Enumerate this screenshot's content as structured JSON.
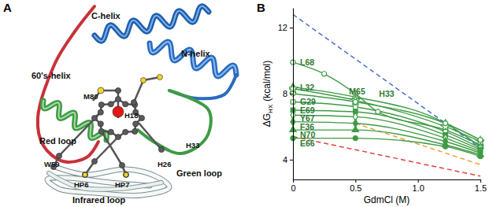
{
  "diagram": {
    "panel_label": "A",
    "labels": [
      "C-helix",
      "N-helix",
      "60's-helix",
      "M80",
      "H18",
      "Red loop",
      "W59",
      "HP6",
      "HP7",
      "H33",
      "H26",
      "Green loop",
      "Infrared loop"
    ]
  },
  "chart_data": {
    "type": "line",
    "panel_label": "B",
    "xlabel": "GdmCl (M)",
    "ylabel": [
      "ΔG",
      "HX",
      "(kcal/mol)"
    ],
    "xlim": [
      0,
      1.5
    ],
    "xticks": [
      0,
      0.5,
      {
        "value": 1,
        "label": "1.0"
      },
      1.5
    ],
    "ylim": [
      2.8,
      13.2
    ],
    "yticks": [
      4,
      8,
      12
    ],
    "series": [
      {
        "name": "L68",
        "color": "#3f9b45",
        "marker": "circle",
        "x": [
          0,
          0.25,
          0.5,
          0.68,
          1.22,
          1.5
        ],
        "values": [
          9.9,
          9.2,
          8.0,
          6.9,
          5.8,
          4.9
        ]
      },
      {
        "name": "L32",
        "color": "#3f9b45",
        "marker": "triangle",
        "x": [
          0,
          0.5,
          1.22,
          1.5
        ],
        "values": [
          8.4,
          7.8,
          6.2,
          4.8
        ]
      },
      {
        "name": "G29",
        "color": "#3f9b45",
        "marker": "square",
        "x": [
          0,
          0.5,
          1.22,
          1.5
        ],
        "values": [
          7.5,
          7.2,
          5.7,
          4.7
        ]
      },
      {
        "name": "M65",
        "color": "#3f9b45",
        "marker": "star",
        "x": [
          0,
          0.5,
          1.22,
          1.5
        ],
        "values": [
          8.3,
          7.6,
          6.0,
          5.1
        ]
      },
      {
        "name": "H33",
        "color": "#3f9b45",
        "marker": "circle",
        "x": [
          0,
          0.5,
          1.22,
          1.5
        ],
        "values": [
          8.0,
          7.5,
          6.2,
          5.2
        ]
      },
      {
        "name": "E69",
        "color": "#3f9b45",
        "marker": "filled-square",
        "x": [
          0,
          0.5,
          1.22,
          1.5
        ],
        "values": [
          7.0,
          6.9,
          5.5,
          4.6
        ]
      },
      {
        "name": "Y67",
        "color": "#3f9b45",
        "marker": "diamond",
        "x": [
          0,
          0.5,
          1.22,
          1.5
        ],
        "values": [
          6.7,
          6.6,
          5.3,
          4.5
        ]
      },
      {
        "name": "F36",
        "color": "#3f9b45",
        "marker": "filled-diamond",
        "x": [
          0,
          0.5,
          1.22,
          1.5
        ],
        "values": [
          6.3,
          6.2,
          5.1,
          4.4
        ]
      },
      {
        "name": "N70",
        "color": "#3f9b45",
        "marker": "filled-triangle",
        "x": [
          0,
          0.5,
          1.22,
          1.5
        ],
        "values": [
          5.8,
          5.8,
          4.9,
          4.3
        ]
      },
      {
        "name": "E66",
        "color": "#3f9b45",
        "marker": "filled-circle",
        "x": [
          0,
          0.5,
          1.22,
          1.5
        ],
        "values": [
          5.3,
          5.3,
          4.8,
          4.2
        ]
      }
    ],
    "reference_lines": [
      {
        "color": "#4a6fd0",
        "line_style": "dashed",
        "x": [
          0,
          1.5
        ],
        "values": [
          12.8,
          4.7
        ]
      },
      {
        "color": "#f0a030",
        "line_style": "dashed",
        "x": [
          0.5,
          1.5
        ],
        "values": [
          6.2,
          3.7
        ]
      },
      {
        "color": "#e04040",
        "line_style": "dashed",
        "x": [
          0,
          1.5
        ],
        "values": [
          5.4,
          3.0
        ]
      }
    ]
  }
}
